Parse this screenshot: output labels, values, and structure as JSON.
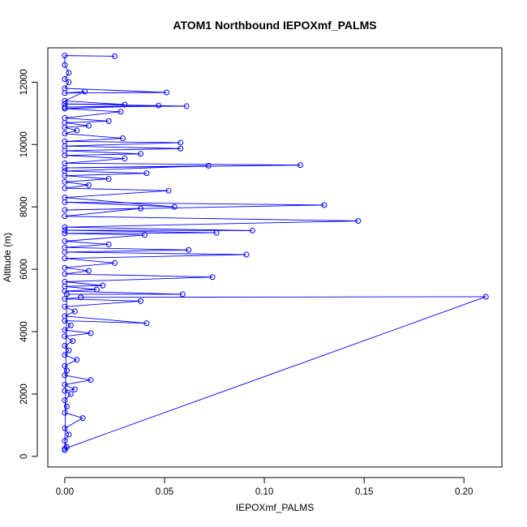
{
  "chart_data": {
    "type": "line",
    "title": "ATOM1 Northbound IEPOXmf_PALMS",
    "xlabel": "IEPOXmf_PALMS",
    "ylabel": "Altitude (m)",
    "xlim": [
      -0.0085,
      0.219
    ],
    "ylim": [
      -340,
      13100
    ],
    "x_ticks": [
      0.0,
      0.05,
      0.1,
      0.15,
      0.2
    ],
    "x_tick_labels": [
      "0.00",
      "0.05",
      "0.10",
      "0.15",
      "0.20"
    ],
    "y_ticks": [
      0,
      2000,
      4000,
      6000,
      8000,
      10000,
      12000
    ],
    "y_tick_labels": [
      "0",
      "2000",
      "4000",
      "6000",
      "8000",
      "10000",
      "12000"
    ],
    "grid": false,
    "series": [
      {
        "color": "#0000ff",
        "marker": "open-circle",
        "points": [
          [
            0.0,
            200
          ],
          [
            0.001,
            300
          ],
          [
            0.0,
            500
          ],
          [
            0.002,
            700
          ],
          [
            0.0,
            900
          ],
          [
            0.009,
            1230
          ],
          [
            0.0,
            1400
          ],
          [
            0.001,
            1600
          ],
          [
            0.0,
            1800
          ],
          [
            0.003,
            2000
          ],
          [
            0.0,
            2100
          ],
          [
            0.005,
            2150
          ],
          [
            0.0,
            2300
          ],
          [
            0.013,
            2450
          ],
          [
            0.0,
            2600
          ],
          [
            0.001,
            2750
          ],
          [
            0.0,
            2900
          ],
          [
            0.006,
            3100
          ],
          [
            0.0,
            3250
          ],
          [
            0.002,
            3400
          ],
          [
            0.0,
            3550
          ],
          [
            0.004,
            3700
          ],
          [
            0.0,
            3850
          ],
          [
            0.013,
            3950
          ],
          [
            0.0,
            4050
          ],
          [
            0.003,
            4200
          ],
          [
            0.0,
            4350
          ],
          [
            0.041,
            4270
          ],
          [
            0.0,
            4500
          ],
          [
            0.005,
            4650
          ],
          [
            0.0,
            4800
          ],
          [
            0.038,
            4980
          ],
          [
            0.0,
            5050
          ],
          [
            0.008,
            5100
          ],
          [
            0.211,
            5120
          ],
          [
            0.0,
            250
          ],
          [
            0.001,
            5200
          ],
          [
            0.059,
            5200
          ],
          [
            0.0,
            5300
          ],
          [
            0.016,
            5350
          ],
          [
            0.0,
            5450
          ],
          [
            0.019,
            5480
          ],
          [
            0.0,
            5600
          ],
          [
            0.074,
            5750
          ],
          [
            0.0,
            5850
          ],
          [
            0.012,
            5950
          ],
          [
            0.0,
            6050
          ],
          [
            0.025,
            6200
          ],
          [
            0.0,
            6350
          ],
          [
            0.091,
            6470
          ],
          [
            0.0,
            6550
          ],
          [
            0.062,
            6620
          ],
          [
            0.0,
            6700
          ],
          [
            0.022,
            6800
          ],
          [
            0.0,
            6900
          ],
          [
            0.04,
            7100
          ],
          [
            0.0,
            7150
          ],
          [
            0.076,
            7170
          ],
          [
            0.0,
            7250
          ],
          [
            0.094,
            7240
          ],
          [
            0.0,
            7350
          ],
          [
            0.147,
            7550
          ],
          [
            0.0,
            7700
          ],
          [
            0.038,
            7950
          ],
          [
            0.0,
            7900
          ],
          [
            0.13,
            8060
          ],
          [
            0.0,
            8150
          ],
          [
            0.055,
            8000
          ],
          [
            0.0,
            8300
          ],
          [
            0.052,
            8520
          ],
          [
            0.0,
            8600
          ],
          [
            0.012,
            8700
          ],
          [
            0.0,
            8800
          ],
          [
            0.022,
            8900
          ],
          [
            0.0,
            9000
          ],
          [
            0.041,
            9080
          ],
          [
            0.0,
            9150
          ],
          [
            0.072,
            9320
          ],
          [
            0.0,
            9250
          ],
          [
            0.118,
            9340
          ],
          [
            0.0,
            9400
          ],
          [
            0.03,
            9550
          ],
          [
            0.0,
            9650
          ],
          [
            0.038,
            9700
          ],
          [
            0.0,
            9800
          ],
          [
            0.058,
            9870
          ],
          [
            0.0,
            9950
          ],
          [
            0.058,
            10060
          ],
          [
            0.0,
            10100
          ],
          [
            0.029,
            10200
          ],
          [
            0.0,
            10350
          ],
          [
            0.006,
            10450
          ],
          [
            0.0,
            10550
          ],
          [
            0.012,
            10600
          ],
          [
            0.0,
            10700
          ],
          [
            0.022,
            10750
          ],
          [
            0.0,
            10850
          ],
          [
            0.028,
            11050
          ],
          [
            0.0,
            11150
          ],
          [
            0.047,
            11250
          ],
          [
            0.0,
            11200
          ],
          [
            0.061,
            11230
          ],
          [
            0.0,
            11300
          ],
          [
            0.03,
            11280
          ],
          [
            0.0,
            11400
          ],
          [
            0.01,
            11700
          ],
          [
            0.0,
            11650
          ],
          [
            0.051,
            11670
          ],
          [
            0.0,
            11800
          ],
          [
            0.002,
            12000
          ],
          [
            0.0,
            12100
          ],
          [
            0.002,
            12300
          ],
          [
            0.0,
            12550
          ],
          [
            0.0,
            12850
          ],
          [
            0.025,
            12830
          ]
        ]
      }
    ]
  }
}
